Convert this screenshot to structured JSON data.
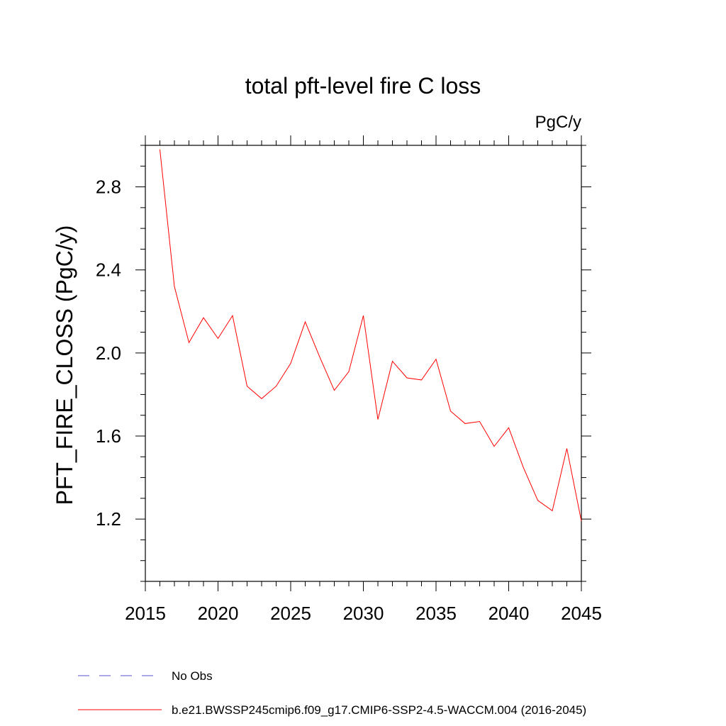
{
  "chart_data": {
    "type": "line",
    "title": "total pft-level fire C loss",
    "units_label": "PgC/y",
    "xlabel": "",
    "ylabel": "PFT_FIRE_CLOSS  (PgC/y)",
    "xlim": [
      2015,
      2045
    ],
    "ylim": [
      0.9,
      3.0
    ],
    "x_ticks": [
      2015,
      2020,
      2025,
      2030,
      2035,
      2040,
      2045
    ],
    "y_ticks": [
      1.2,
      1.6,
      2.0,
      2.4,
      2.8
    ],
    "y_tick_labels": [
      "1.2",
      "1.6",
      "2.0",
      "2.4",
      "2.8"
    ],
    "series": [
      {
        "name": "b.e21.BWSSP245cmip6.f09_g17.CMIP6-SSP2-4.5-WACCM.004 (2016-2045)",
        "color": "#ff0000",
        "x": [
          2016,
          2017,
          2018,
          2019,
          2020,
          2021,
          2022,
          2023,
          2024,
          2025,
          2026,
          2027,
          2028,
          2029,
          2030,
          2031,
          2032,
          2033,
          2034,
          2035,
          2036,
          2037,
          2038,
          2039,
          2040,
          2041,
          2042,
          2043,
          2044,
          2045
        ],
        "values": [
          2.98,
          2.32,
          2.05,
          2.17,
          2.07,
          2.18,
          1.84,
          1.78,
          1.84,
          1.95,
          2.15,
          1.98,
          1.82,
          1.91,
          2.18,
          1.68,
          1.96,
          1.88,
          1.87,
          1.97,
          1.72,
          1.66,
          1.67,
          1.55,
          1.64,
          1.45,
          1.29,
          1.24,
          1.54,
          1.19
        ]
      }
    ],
    "legend": [
      {
        "label": "No Obs",
        "style": "dashed",
        "color": "#5a4fcf"
      },
      {
        "label": "b.e21.BWSSP245cmip6.f09_g17.CMIP6-SSP2-4.5-WACCM.004 (2016-2045)",
        "style": "solid",
        "color": "#ff0000"
      }
    ],
    "legend_position": "bottom-left",
    "grid": false
  }
}
